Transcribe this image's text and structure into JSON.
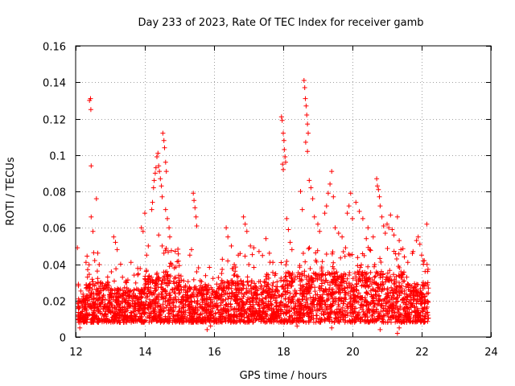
{
  "chart_data": {
    "type": "scatter",
    "title": "Day 233 of 2023, Rate Of TEC Index for receiver gamb",
    "xlabel": "GPS time / hours",
    "ylabel": "ROTI / TECUs",
    "xlim": [
      12,
      24
    ],
    "ylim": [
      0,
      0.16
    ],
    "xticks": [
      12,
      14,
      16,
      18,
      20,
      22,
      24
    ],
    "yticks": [
      0,
      0.02,
      0.04,
      0.06,
      0.08,
      0.1,
      0.12,
      0.14,
      0.16
    ],
    "ytick_labels": [
      "0",
      "0.02",
      "0.04",
      "0.06",
      "0.08",
      "0.1",
      "0.12",
      "0.14",
      "0.16"
    ],
    "grid": true,
    "marker": "+",
    "series": [
      {
        "name": "ROTI",
        "color": "#ff0000",
        "points": [
          [
            12.05,
            0.049
          ],
          [
            12.08,
            0.029
          ],
          [
            12.1,
            0.016
          ],
          [
            12.12,
            0.005
          ],
          [
            12.15,
            0.012
          ],
          [
            12.4,
            0.13
          ],
          [
            12.43,
            0.131
          ],
          [
            12.44,
            0.125
          ],
          [
            12.45,
            0.094
          ],
          [
            12.6,
            0.076
          ],
          [
            12.45,
            0.066
          ],
          [
            12.5,
            0.058
          ],
          [
            12.55,
            0.042
          ],
          [
            12.3,
            0.041
          ],
          [
            12.35,
            0.037
          ],
          [
            13.1,
            0.055
          ],
          [
            13.15,
            0.052
          ],
          [
            13.2,
            0.048
          ],
          [
            13.3,
            0.04
          ],
          [
            13.6,
            0.041
          ],
          [
            13.9,
            0.06
          ],
          [
            13.95,
            0.058
          ],
          [
            14.0,
            0.068
          ],
          [
            14.05,
            0.045
          ],
          [
            14.1,
            0.05
          ],
          [
            14.2,
            0.07
          ],
          [
            14.22,
            0.074
          ],
          [
            14.25,
            0.082
          ],
          [
            14.27,
            0.086
          ],
          [
            14.3,
            0.09
          ],
          [
            14.32,
            0.093
          ],
          [
            14.35,
            0.099
          ],
          [
            14.38,
            0.101
          ],
          [
            14.4,
            0.094
          ],
          [
            14.42,
            0.091
          ],
          [
            14.45,
            0.087
          ],
          [
            14.48,
            0.083
          ],
          [
            14.5,
            0.077
          ],
          [
            14.52,
            0.112
          ],
          [
            14.55,
            0.108
          ],
          [
            14.57,
            0.104
          ],
          [
            14.6,
            0.096
          ],
          [
            14.62,
            0.091
          ],
          [
            14.6,
            0.07
          ],
          [
            14.65,
            0.065
          ],
          [
            14.7,
            0.06
          ],
          [
            14.72,
            0.055
          ],
          [
            14.4,
            0.056
          ],
          [
            14.5,
            0.05
          ],
          [
            14.55,
            0.046
          ],
          [
            15.4,
            0.079
          ],
          [
            15.42,
            0.075
          ],
          [
            15.45,
            0.071
          ],
          [
            15.48,
            0.066
          ],
          [
            15.5,
            0.061
          ],
          [
            15.3,
            0.045
          ],
          [
            15.35,
            0.048
          ],
          [
            15.55,
            0.038
          ],
          [
            15.6,
            0.031
          ],
          [
            16.35,
            0.06
          ],
          [
            16.4,
            0.055
          ],
          [
            16.5,
            0.05
          ],
          [
            16.7,
            0.045
          ],
          [
            16.85,
            0.066
          ],
          [
            16.9,
            0.062
          ],
          [
            16.95,
            0.058
          ],
          [
            17.05,
            0.05
          ],
          [
            17.15,
            0.049
          ],
          [
            17.3,
            0.047
          ],
          [
            17.5,
            0.054
          ],
          [
            17.6,
            0.046
          ],
          [
            17.7,
            0.041
          ],
          [
            17.95,
            0.121
          ],
          [
            17.97,
            0.119
          ],
          [
            18.0,
            0.112
          ],
          [
            18.02,
            0.108
          ],
          [
            18.03,
            0.103
          ],
          [
            18.05,
            0.099
          ],
          [
            17.98,
            0.095
          ],
          [
            18.0,
            0.092
          ],
          [
            18.07,
            0.096
          ],
          [
            18.1,
            0.065
          ],
          [
            18.15,
            0.059
          ],
          [
            18.2,
            0.052
          ],
          [
            18.25,
            0.048
          ],
          [
            18.6,
            0.141
          ],
          [
            18.62,
            0.137
          ],
          [
            18.64,
            0.131
          ],
          [
            18.66,
            0.127
          ],
          [
            18.68,
            0.122
          ],
          [
            18.7,
            0.117
          ],
          [
            18.72,
            0.112
          ],
          [
            18.65,
            0.107
          ],
          [
            18.7,
            0.102
          ],
          [
            18.75,
            0.086
          ],
          [
            18.8,
            0.082
          ],
          [
            18.85,
            0.076
          ],
          [
            18.5,
            0.08
          ],
          [
            18.55,
            0.07
          ],
          [
            18.9,
            0.066
          ],
          [
            19.0,
            0.062
          ],
          [
            19.05,
            0.058
          ],
          [
            19.2,
            0.068
          ],
          [
            19.25,
            0.072
          ],
          [
            19.3,
            0.079
          ],
          [
            19.35,
            0.084
          ],
          [
            19.4,
            0.091
          ],
          [
            19.45,
            0.077
          ],
          [
            19.5,
            0.06
          ],
          [
            19.6,
            0.057
          ],
          [
            19.7,
            0.055
          ],
          [
            19.8,
            0.049
          ],
          [
            19.85,
            0.068
          ],
          [
            19.9,
            0.072
          ],
          [
            19.95,
            0.079
          ],
          [
            20.0,
            0.065
          ],
          [
            20.1,
            0.074
          ],
          [
            20.2,
            0.069
          ],
          [
            20.3,
            0.065
          ],
          [
            20.4,
            0.054
          ],
          [
            20.45,
            0.06
          ],
          [
            20.5,
            0.048
          ],
          [
            20.6,
            0.055
          ],
          [
            20.7,
            0.087
          ],
          [
            20.72,
            0.083
          ],
          [
            20.75,
            0.081
          ],
          [
            20.78,
            0.077
          ],
          [
            20.8,
            0.072
          ],
          [
            20.85,
            0.066
          ],
          [
            20.9,
            0.061
          ],
          [
            20.95,
            0.057
          ],
          [
            21.0,
            0.062
          ],
          [
            21.05,
            0.06
          ],
          [
            21.1,
            0.067
          ],
          [
            21.15,
            0.059
          ],
          [
            21.2,
            0.056
          ],
          [
            21.3,
            0.066
          ],
          [
            21.35,
            0.053
          ],
          [
            21.4,
            0.048
          ],
          [
            21.5,
            0.044
          ],
          [
            21.6,
            0.041
          ],
          [
            21.75,
            0.047
          ],
          [
            21.85,
            0.053
          ],
          [
            21.9,
            0.055
          ],
          [
            21.95,
            0.051
          ],
          [
            22.0,
            0.045
          ],
          [
            22.05,
            0.04
          ],
          [
            22.1,
            0.036
          ],
          [
            22.15,
            0.062
          ],
          [
            22.17,
            0.036
          ],
          [
            21.3,
            0.002
          ],
          [
            21.35,
            0.005
          ],
          [
            20.8,
            0.004
          ],
          [
            19.4,
            0.005
          ],
          [
            18.4,
            0.006
          ],
          [
            15.8,
            0.004
          ],
          [
            15.9,
            0.006
          ]
        ]
      }
    ]
  }
}
